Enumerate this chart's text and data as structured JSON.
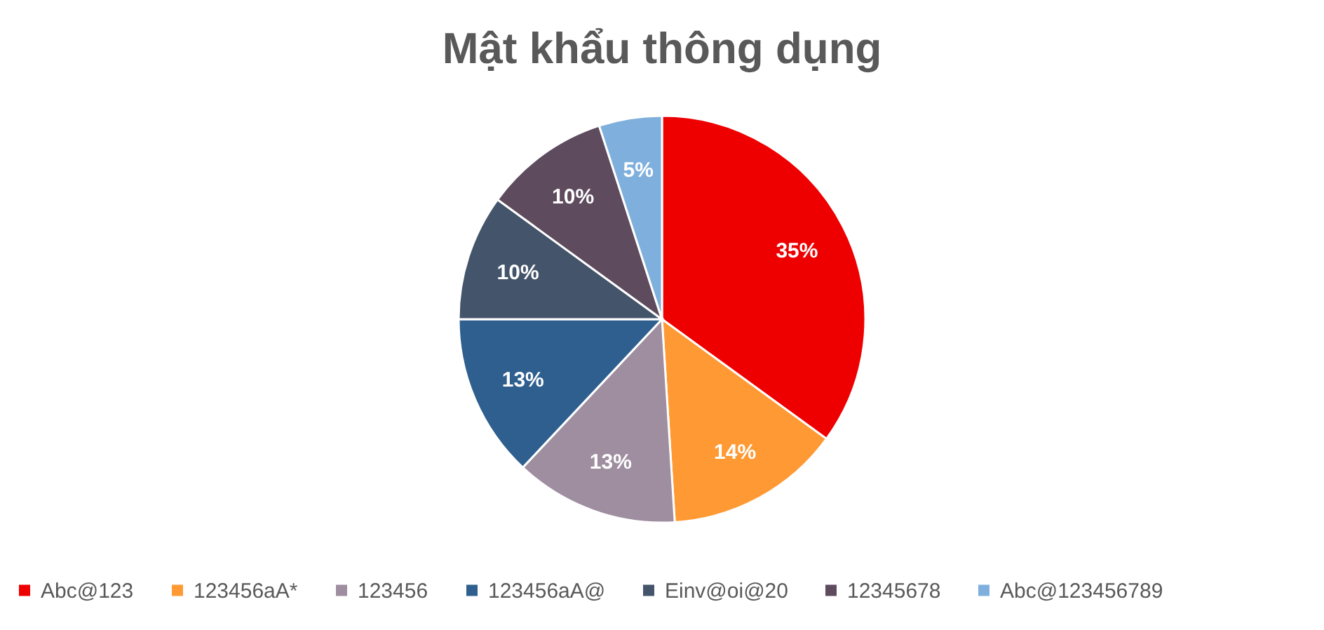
{
  "chart_data": {
    "type": "pie",
    "title": "Mật khẩu thông dụng",
    "categories": [
      "Abc@123",
      "123456aA*",
      "123456",
      "123456aA@",
      "Einv@oi@20",
      "12345678",
      "Abc@123456789"
    ],
    "values": [
      35,
      14,
      13,
      13,
      10,
      10,
      5
    ],
    "colors": [
      "#ee0000",
      "#ff9933",
      "#9e8ea0",
      "#2e5f8e",
      "#44546a",
      "#5e4b5e",
      "#7fb0dd"
    ],
    "value_labels": [
      "35%",
      "14%",
      "13%",
      "13%",
      "10%",
      "10%",
      "5%"
    ],
    "legend": "bottom"
  }
}
